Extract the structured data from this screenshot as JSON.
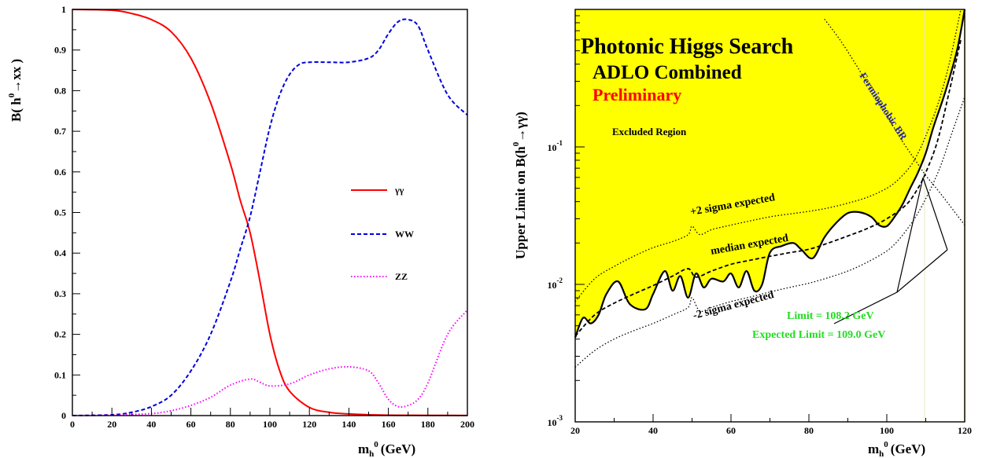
{
  "chart_data": [
    {
      "type": "line",
      "xlabel": "m",
      "xlabel_sub": "h",
      "xlabel_sup": "0",
      "xlabel_unit": "(GeV)",
      "ylabel": "B( h",
      "ylabel_sup": "0",
      "ylabel_tail": "→xx )",
      "xlim": [
        0,
        200
      ],
      "ylim": [
        0,
        1
      ],
      "xticks": [
        0,
        20,
        40,
        60,
        80,
        100,
        120,
        140,
        160,
        180,
        200
      ],
      "yticks": [
        0,
        0.1,
        0.2,
        0.3,
        0.4,
        0.5,
        0.6,
        0.7,
        0.8,
        0.9,
        1
      ],
      "legend_position": "center-right",
      "series": [
        {
          "name": "γγ",
          "color": "#ff0000",
          "style": "solid",
          "x": [
            0,
            20,
            30,
            40,
            50,
            60,
            70,
            80,
            85,
            90,
            95,
            100,
            105,
            110,
            120,
            130,
            140,
            150,
            160,
            180,
            200
          ],
          "y": [
            1.0,
            0.998,
            0.99,
            0.975,
            0.945,
            0.88,
            0.77,
            0.62,
            0.53,
            0.45,
            0.33,
            0.2,
            0.11,
            0.06,
            0.02,
            0.008,
            0.004,
            0.002,
            0.001,
            0.0005,
            0.0003
          ]
        },
        {
          "name": "WW",
          "color": "#0000dd",
          "style": "dashed",
          "x": [
            0,
            20,
            30,
            40,
            50,
            60,
            70,
            80,
            85,
            90,
            95,
            100,
            105,
            110,
            115,
            120,
            130,
            140,
            150,
            155,
            160,
            165,
            170,
            175,
            180,
            190,
            200
          ],
          "y": [
            0.0,
            0.002,
            0.008,
            0.022,
            0.05,
            0.11,
            0.2,
            0.33,
            0.41,
            0.49,
            0.6,
            0.71,
            0.79,
            0.84,
            0.865,
            0.87,
            0.87,
            0.87,
            0.88,
            0.9,
            0.94,
            0.97,
            0.975,
            0.96,
            0.9,
            0.79,
            0.74
          ]
        },
        {
          "name": "ZZ",
          "color": "#ff00ff",
          "style": "dotted",
          "x": [
            0,
            20,
            40,
            50,
            60,
            70,
            80,
            90,
            95,
            100,
            110,
            120,
            130,
            140,
            150,
            155,
            160,
            165,
            170,
            175,
            180,
            190,
            200
          ],
          "y": [
            0.0,
            0.001,
            0.005,
            0.012,
            0.025,
            0.045,
            0.075,
            0.09,
            0.082,
            0.073,
            0.078,
            0.1,
            0.115,
            0.12,
            0.11,
            0.08,
            0.04,
            0.022,
            0.025,
            0.04,
            0.08,
            0.2,
            0.26
          ]
        }
      ]
    },
    {
      "type": "line",
      "title": "Photonic Higgs Search",
      "subtitle": "ADLO Combined",
      "status": "Preliminary",
      "region_label": "Excluded Region",
      "xlabel": "m",
      "xlabel_sub": "h",
      "xlabel_sup": "0",
      "xlabel_unit": "(GeV)",
      "ylabel": "Upper Limit on B(h",
      "ylabel_sup": "0",
      "ylabel_tail": "→γγ)",
      "xlim": [
        20,
        120
      ],
      "ylim": [
        0.001,
        1
      ],
      "yscale": "log",
      "xticks": [
        20,
        40,
        60,
        80,
        100,
        120
      ],
      "yticks_major": [
        {
          "base": "10",
          "exp": "-3",
          "value": 0.001
        },
        {
          "base": "10",
          "exp": "-2",
          "value": 0.01
        },
        {
          "base": "10",
          "exp": "-1",
          "value": 0.1
        }
      ],
      "annotations": {
        "plus2": "+2 sigma expected",
        "median": "median expected",
        "minus2": "-2 sigma expected",
        "fermiophobic": "Fermiophobic BR",
        "limit": "Limit = 108.2 GeV",
        "expected_limit": "Expected Limit = 109.0 GeV"
      },
      "colors": {
        "excluded_fill": "#ffff00",
        "limit_text": "#22dd22",
        "fermiophobic_text": "#2020b0"
      },
      "series": [
        {
          "role": "observed",
          "style": "solid",
          "x": [
            20,
            22,
            24,
            26,
            28,
            31,
            34,
            38,
            40,
            43,
            45,
            47,
            49,
            51,
            53,
            55,
            58,
            60,
            62,
            64,
            66,
            68,
            70,
            73,
            76,
            78,
            81,
            84,
            87,
            90,
            93,
            96,
            98,
            100,
            102,
            104,
            106,
            108,
            110,
            112,
            115,
            118,
            120
          ],
          "y": [
            0.0041,
            0.0057,
            0.0052,
            0.006,
            0.0085,
            0.0105,
            0.0072,
            0.0066,
            0.0085,
            0.0125,
            0.009,
            0.0115,
            0.008,
            0.012,
            0.0095,
            0.011,
            0.0105,
            0.012,
            0.0095,
            0.0125,
            0.009,
            0.01,
            0.017,
            0.019,
            0.02,
            0.018,
            0.0155,
            0.022,
            0.028,
            0.033,
            0.0335,
            0.031,
            0.027,
            0.0265,
            0.031,
            0.038,
            0.05,
            0.065,
            0.09,
            0.14,
            0.25,
            0.5,
            1.0
          ]
        },
        {
          "role": "median expected",
          "style": "dashed",
          "x": [
            20,
            25,
            30,
            35,
            40,
            45,
            49,
            51,
            55,
            60,
            65,
            70,
            75,
            80,
            85,
            90,
            95,
            100,
            105,
            108,
            110,
            113,
            116,
            119
          ],
          "y": [
            0.0042,
            0.006,
            0.0073,
            0.0085,
            0.0098,
            0.0115,
            0.013,
            0.0113,
            0.0125,
            0.014,
            0.015,
            0.016,
            0.017,
            0.018,
            0.02,
            0.0225,
            0.0255,
            0.03,
            0.038,
            0.05,
            0.065,
            0.11,
            0.25,
            0.6
          ]
        },
        {
          "role": "+2 sigma expected",
          "style": "dotted",
          "x": [
            20,
            25,
            30,
            35,
            40,
            45,
            49,
            50,
            52,
            55,
            60,
            65,
            70,
            75,
            80,
            85,
            90,
            95,
            100,
            103,
            106,
            108,
            110,
            113,
            116,
            119
          ],
          "y": [
            0.0075,
            0.011,
            0.0135,
            0.016,
            0.0185,
            0.0205,
            0.023,
            0.0265,
            0.023,
            0.025,
            0.027,
            0.029,
            0.031,
            0.0325,
            0.034,
            0.036,
            0.039,
            0.043,
            0.05,
            0.058,
            0.072,
            0.09,
            0.12,
            0.2,
            0.4,
            1.0
          ]
        },
        {
          "role": "-2 sigma expected",
          "style": "dotted",
          "x": [
            20,
            25,
            30,
            35,
            40,
            45,
            49,
            50,
            52,
            55,
            60,
            65,
            70,
            75,
            80,
            85,
            90,
            95,
            100,
            103,
            106,
            108,
            110,
            112,
            114,
            116,
            118,
            120
          ],
          "y": [
            0.0025,
            0.0033,
            0.004,
            0.0046,
            0.0052,
            0.006,
            0.0068,
            0.008,
            0.0064,
            0.0068,
            0.0075,
            0.0081,
            0.0088,
            0.0095,
            0.0102,
            0.0112,
            0.0125,
            0.0145,
            0.0175,
            0.021,
            0.027,
            0.033,
            0.042,
            0.055,
            0.075,
            0.11,
            0.16,
            0.23
          ]
        },
        {
          "role": "fermiophobic BR",
          "style": "dotted",
          "x": [
            84,
            88,
            92,
            96,
            100,
            104,
            108,
            110,
            112,
            114,
            116,
            118,
            120
          ],
          "y": [
            0.85,
            0.6,
            0.4,
            0.26,
            0.17,
            0.11,
            0.075,
            0.062,
            0.053,
            0.045,
            0.038,
            0.032,
            0.027
          ]
        }
      ]
    }
  ]
}
